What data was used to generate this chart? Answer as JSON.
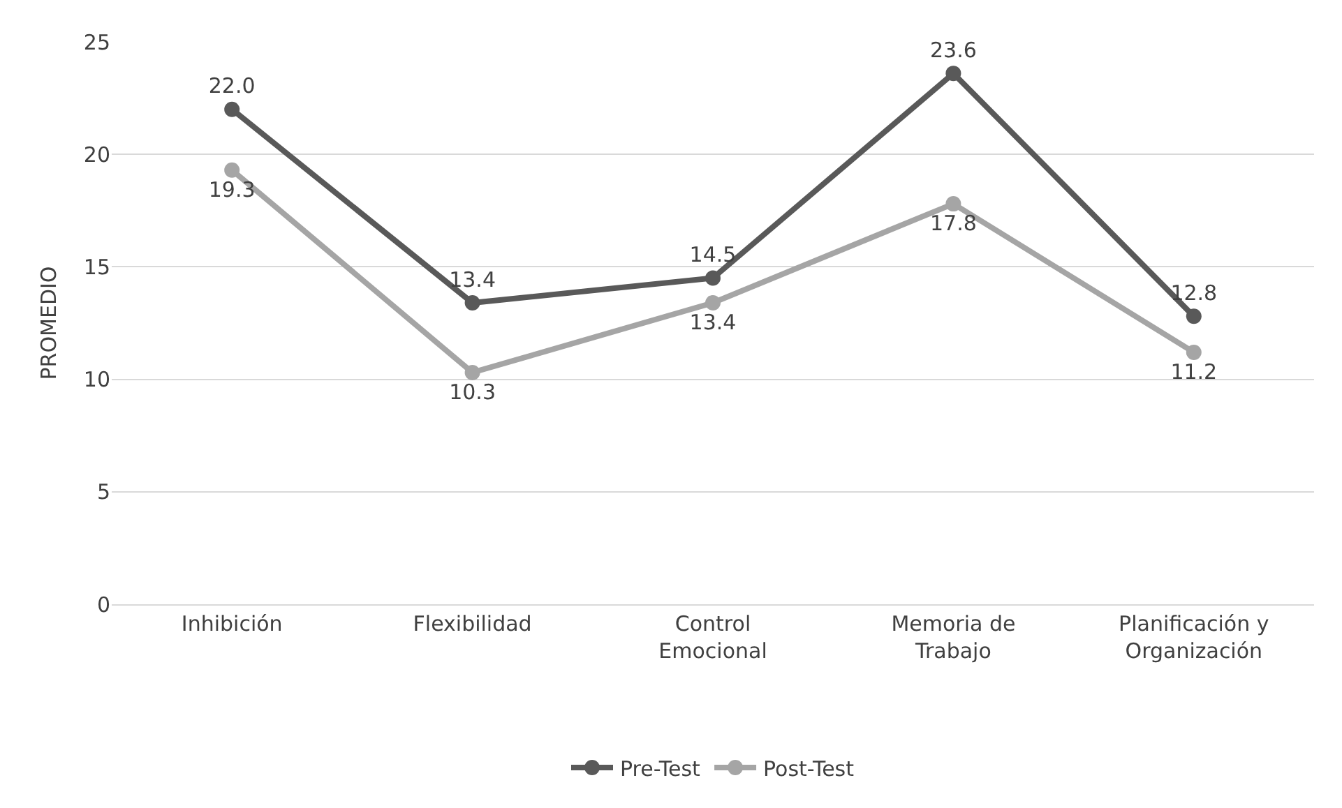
{
  "chart_data": {
    "type": "line",
    "ylabel": "PROMEDIO",
    "categories": [
      "Inhibición",
      "Flexibilidad",
      "Control Emocional",
      "Memoria de Trabajo",
      "Planificación y Organización"
    ],
    "series": [
      {
        "name": "Pre-Test",
        "color": "#595959",
        "values": [
          22.0,
          13.4,
          14.5,
          23.6,
          12.8
        ],
        "value_labels": [
          "22.0",
          "13.4",
          "14.5",
          "23.6",
          "12.8"
        ]
      },
      {
        "name": "Post-Test",
        "color": "#a5a5a5",
        "values": [
          19.3,
          10.3,
          13.4,
          17.8,
          11.2
        ],
        "value_labels": [
          "19.3",
          "10.3",
          "13.4",
          "17.8",
          "11.2"
        ]
      }
    ],
    "ylim": [
      0,
      25
    ],
    "yticks": [
      0,
      5,
      10,
      15,
      20,
      25
    ],
    "grid": "y",
    "legend": "bottom",
    "marker": "circle",
    "line_style": "solid"
  }
}
